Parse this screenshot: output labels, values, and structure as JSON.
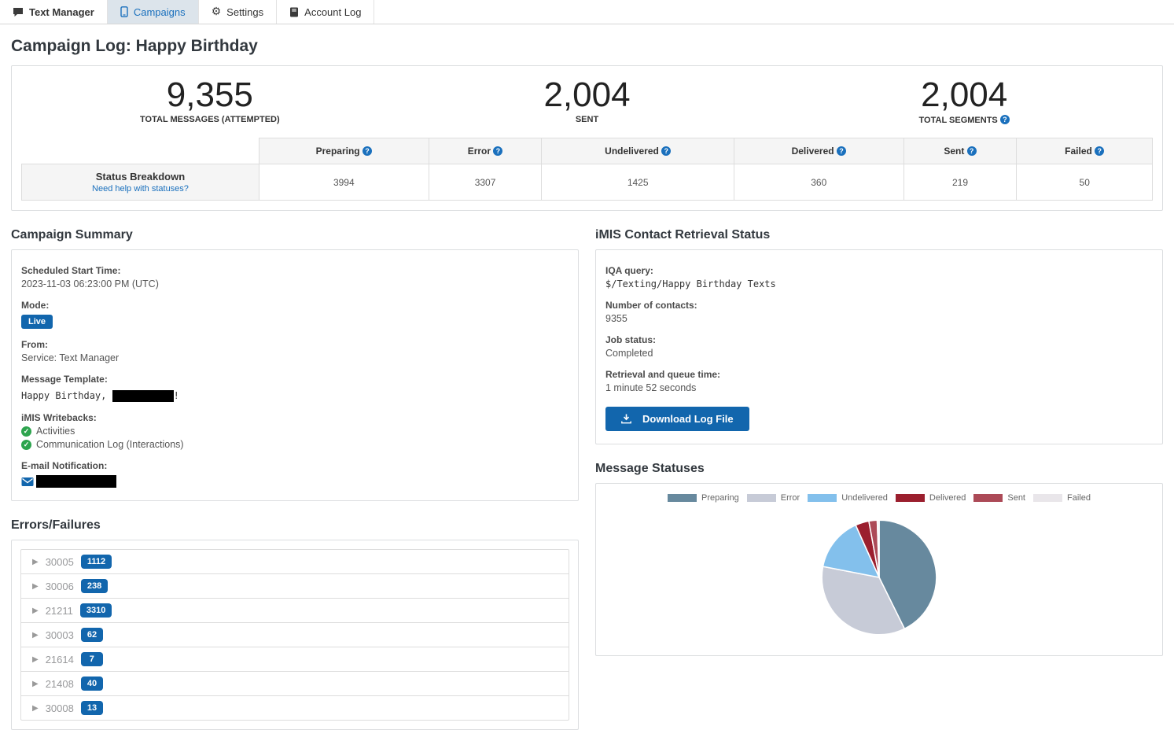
{
  "nav": {
    "tabs": [
      {
        "label": "Text Manager",
        "icon": "comment-icon",
        "active": false
      },
      {
        "label": "Campaigns",
        "icon": "mobile-icon",
        "active": true
      },
      {
        "label": "Settings",
        "icon": "gear-icon",
        "active": false
      },
      {
        "label": "Account Log",
        "icon": "book-icon",
        "active": false
      }
    ]
  },
  "page_title": "Campaign Log: Happy Birthday",
  "stats": [
    {
      "value": "9,355",
      "label": "TOTAL MESSAGES (ATTEMPTED)"
    },
    {
      "value": "2,004",
      "label": "SENT"
    },
    {
      "value": "2,004",
      "label": "TOTAL SEGMENTS"
    }
  ],
  "status_table": {
    "row_header_title": "Status Breakdown",
    "row_header_link": "Need help with statuses?",
    "columns": [
      "Preparing",
      "Error",
      "Undelivered",
      "Delivered",
      "Sent",
      "Failed"
    ],
    "values": [
      "3994",
      "3307",
      "1425",
      "360",
      "219",
      "50"
    ]
  },
  "campaign_summary": {
    "title": "Campaign Summary",
    "scheduled_label": "Scheduled Start Time:",
    "scheduled_value": "2023-11-03 06:23:00 PM (UTC)",
    "mode_label": "Mode:",
    "mode_badge": "Live",
    "from_label": "From:",
    "from_value": "Service: Text Manager",
    "template_label": "Message Template:",
    "template_prefix": "Happy Birthday,",
    "template_suffix": "!",
    "writebacks_label": "iMIS Writebacks:",
    "writebacks": [
      "Activities",
      "Communication Log (Interactions)"
    ],
    "email_label": "E-mail Notification:"
  },
  "retrieval": {
    "title": "iMIS Contact Retrieval Status",
    "iqa_label": "IQA query:",
    "iqa_value": "$/Texting/Happy Birthday Texts",
    "contacts_label": "Number of contacts:",
    "contacts_value": "9355",
    "job_label": "Job status:",
    "job_value": "Completed",
    "time_label": "Retrieval and queue time:",
    "time_value": "1 minute 52 seconds",
    "download_button": "Download Log File"
  },
  "errors": {
    "title": "Errors/Failures",
    "items": [
      {
        "code": "30005",
        "count": "1112"
      },
      {
        "code": "30006",
        "count": "238"
      },
      {
        "code": "21211",
        "count": "3310"
      },
      {
        "code": "30003",
        "count": "62"
      },
      {
        "code": "21614",
        "count": "7"
      },
      {
        "code": "21408",
        "count": "40"
      },
      {
        "code": "30008",
        "count": "13"
      }
    ]
  },
  "message_statuses": {
    "title": "Message Statuses"
  },
  "chart_data": {
    "type": "pie",
    "title": "Message Statuses",
    "labels": [
      "Preparing",
      "Error",
      "Undelivered",
      "Delivered",
      "Sent",
      "Failed"
    ],
    "values": [
      3994,
      3307,
      1425,
      360,
      219,
      50
    ],
    "colors": [
      "#67899e",
      "#c7cbd7",
      "#83c0ec",
      "#9b1f2e",
      "#ac4a57",
      "#e9e6ea"
    ],
    "legend_position": "top",
    "start_angle_deg": -90,
    "direction": "clockwise"
  },
  "colors": {
    "accent_blue": "#1266ad",
    "link_blue": "#1a70bd",
    "active_tab_bg": "#dce4eb",
    "success_green": "#2da44e"
  }
}
